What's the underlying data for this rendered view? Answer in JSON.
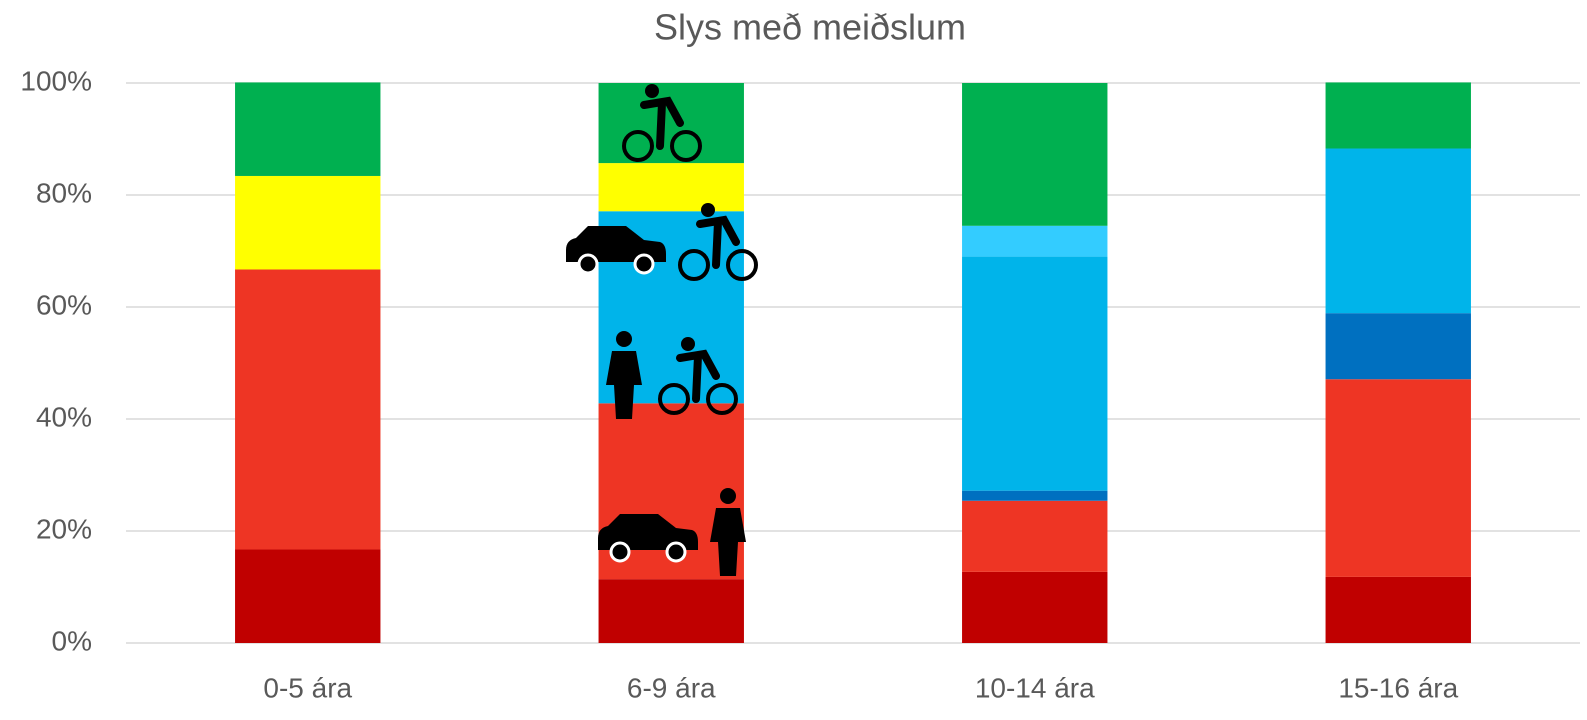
{
  "chart_data": {
    "type": "stacked_bar",
    "title": "Slys með meiðslum",
    "categories": [
      "0-5 ára",
      "6-9 ára",
      "10-14 ára",
      "15-16 ára"
    ],
    "series": [
      {
        "color": "#c00000",
        "values": [
          16.7,
          11.4,
          12.7,
          11.8
        ]
      },
      {
        "color": "#ee3524",
        "values": [
          50,
          31.4,
          12.7,
          35.3
        ]
      },
      {
        "color": "#0070c0",
        "values": [
          0,
          0,
          1.8,
          11.8
        ]
      },
      {
        "color": "#00b4ea",
        "values": [
          0,
          34.3,
          41.8,
          29.4
        ]
      },
      {
        "color": "#33ccff",
        "values": [
          0,
          0,
          5.5,
          0
        ]
      },
      {
        "color": "#ffff00",
        "values": [
          16.7,
          8.6,
          0,
          0
        ]
      },
      {
        "color": "#00b050",
        "values": [
          16.7,
          14.3,
          25.5,
          11.8
        ]
      }
    ],
    "ylim": [
      0,
      100
    ],
    "yticks": [
      {
        "value": 0,
        "label": "0%"
      },
      {
        "value": 20,
        "label": "20%"
      },
      {
        "value": 40,
        "label": "40%"
      },
      {
        "value": 60,
        "label": "60%"
      },
      {
        "value": 80,
        "label": "80%"
      },
      {
        "value": 100,
        "label": "100%"
      }
    ],
    "grid": true
  }
}
